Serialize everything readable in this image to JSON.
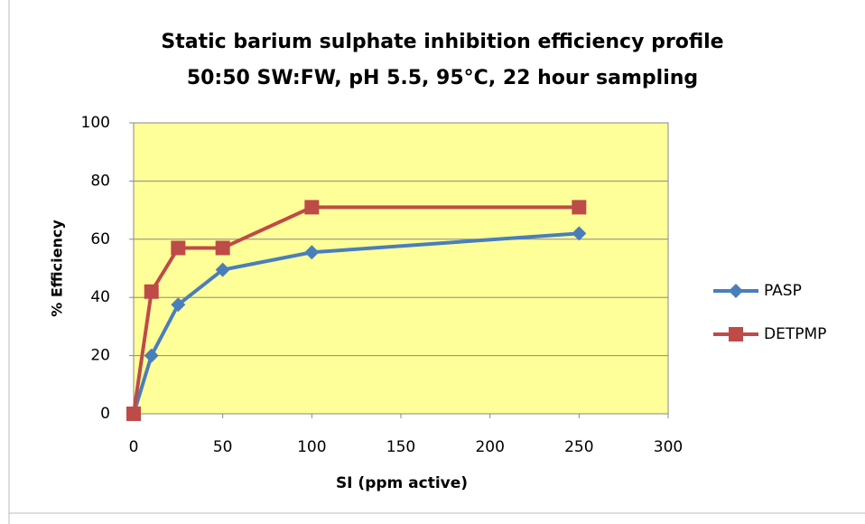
{
  "chart_data": {
    "type": "line",
    "title": "Static barium sulphate inhibition efficiency profile",
    "subtitle": "50:50 SW:FW, pH 5.5,  95°C, 22 hour sampling",
    "x_label": "SI (ppm active)",
    "y_label": "% Efficiency",
    "x": [
      0,
      10,
      25,
      50,
      100,
      250
    ],
    "series": [
      {
        "name": "PASP",
        "color": "#4a7ebb",
        "marker": "diamond",
        "values": [
          0,
          20,
          37.5,
          49.5,
          55.5,
          62
        ]
      },
      {
        "name": "DETPMP",
        "color": "#be4b48",
        "marker": "square",
        "values": [
          0,
          42,
          57,
          57,
          71,
          71
        ]
      }
    ],
    "xlim": [
      0,
      300
    ],
    "xticks": [
      0,
      50,
      100,
      150,
      200,
      250,
      300
    ],
    "ylim": [
      0,
      100
    ],
    "yticks": [
      0,
      20,
      40,
      60,
      80,
      100
    ],
    "grid": true,
    "legend": "right",
    "plot_background": "#ffff99"
  }
}
